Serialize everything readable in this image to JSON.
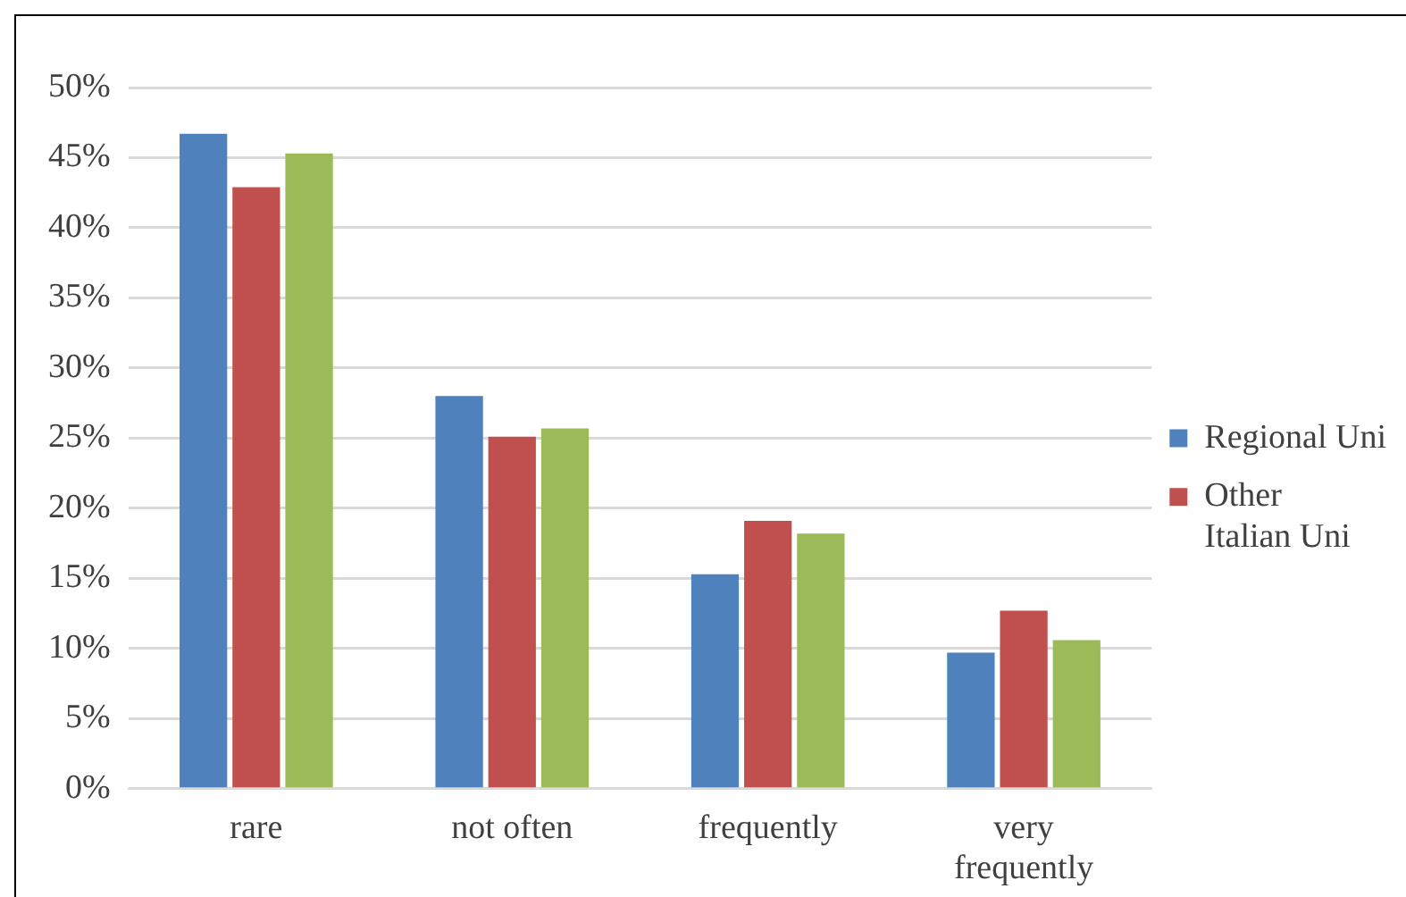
{
  "chart_data": {
    "type": "bar",
    "categories": [
      "rare",
      "not often",
      "frequently",
      "very frequently"
    ],
    "series": [
      {
        "name": "Regional Uni",
        "color": "#4f81bd",
        "values": [
          46.7,
          28.0,
          15.3,
          9.7
        ]
      },
      {
        "name": "Other Italian Uni",
        "color": "#c0504d",
        "values": [
          42.9,
          25.1,
          19.1,
          12.7
        ]
      },
      {
        "color": "#9bbb59",
        "values": [
          45.3,
          25.7,
          18.2,
          10.6
        ]
      }
    ],
    "ylim": [
      0,
      50
    ],
    "yticks": [
      {
        "value": 0,
        "label": "0%"
      },
      {
        "value": 5,
        "label": "5%"
      },
      {
        "value": 10,
        "label": "10%"
      },
      {
        "value": 15,
        "label": "15%"
      },
      {
        "value": 20,
        "label": "20%"
      },
      {
        "value": 25,
        "label": "25%"
      },
      {
        "value": 30,
        "label": "30%"
      },
      {
        "value": 35,
        "label": "35%"
      },
      {
        "value": 40,
        "label": "40%"
      },
      {
        "value": 45,
        "label": "45%"
      },
      {
        "value": 50,
        "label": "50%"
      }
    ],
    "grid": "y",
    "legend": "right"
  }
}
